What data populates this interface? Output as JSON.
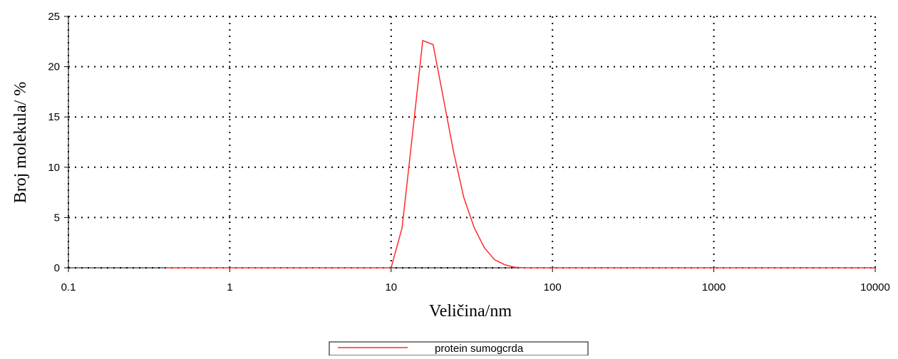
{
  "chart_data": {
    "type": "line",
    "xlabel": "Veličina/nm",
    "ylabel": "Broj molekula/ %",
    "xscale": "log",
    "grid": true,
    "legend_position": "bottom",
    "xlim": [
      0.1,
      10000
    ],
    "xticks": [
      0.1,
      1,
      10,
      100,
      1000,
      10000
    ],
    "ylim": [
      0,
      25
    ],
    "yticks": [
      0,
      5,
      10,
      15,
      20,
      25
    ],
    "x": [
      0.4,
      10,
      11.7,
      13.5,
      15.7,
      18.2,
      21,
      24.4,
      28.2,
      32.7,
      37.8,
      43.8,
      50.7,
      58.7,
      68,
      10000
    ],
    "series": [
      {
        "name": "protein sumogcrda",
        "color": "#ff2a2a",
        "values": [
          0,
          0,
          4,
          13,
          22.6,
          22.2,
          17,
          11.5,
          7,
          4,
          2,
          0.8,
          0.3,
          0.05,
          0,
          0
        ]
      }
    ]
  }
}
